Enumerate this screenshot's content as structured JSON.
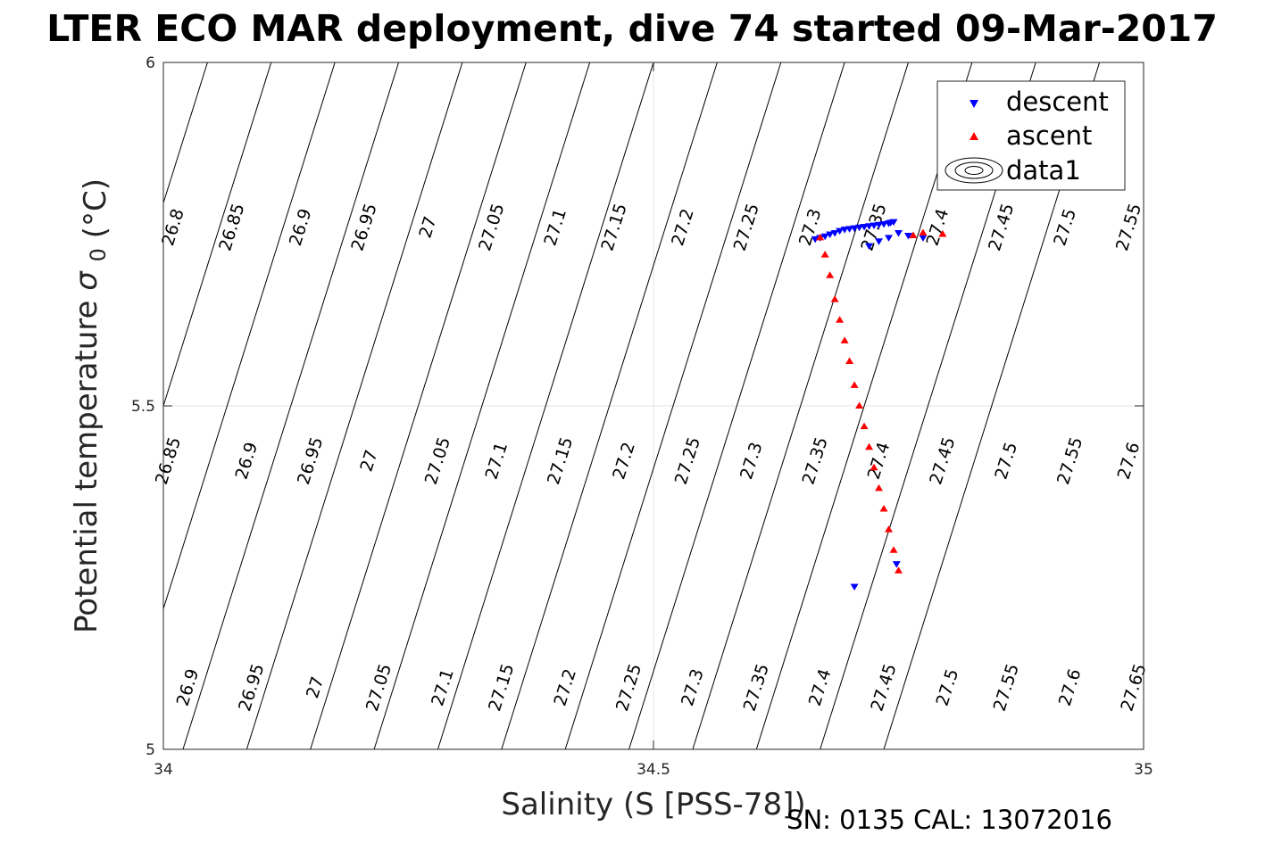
{
  "chart_data": {
    "type": "scatter",
    "title": "LTER ECO MAR deployment, dive 74 started 09-Mar-2017",
    "xlabel": "Salinity (S [PSS-78])",
    "ylabel": "Potential temperature",
    "ylabel_symbol": "σ",
    "ylabel_subscript": "0",
    "ylabel_unit": "(°C)",
    "xlim": [
      34,
      35
    ],
    "ylim": [
      5,
      6
    ],
    "xticks": [
      34,
      34.5,
      35
    ],
    "yticks": [
      5,
      5.5,
      6
    ],
    "xtick_labels": [
      "34",
      "34.5",
      "35"
    ],
    "ytick_labels": [
      "5",
      "5.5",
      "6"
    ],
    "grid": true,
    "legend_position": "top-right",
    "contours": {
      "band_top": {
        "y_label": 5.76,
        "label_positions": [
          {
            "label": "26.8",
            "x": 34.01
          },
          {
            "label": "26.85",
            "x": 34.07
          },
          {
            "label": "26.9",
            "x": 34.14
          },
          {
            "label": "26.95",
            "x": 34.205
          },
          {
            "label": "27",
            "x": 34.27
          },
          {
            "label": "27.05",
            "x": 34.335
          },
          {
            "label": "27.1",
            "x": 34.4
          },
          {
            "label": "27.15",
            "x": 34.46
          },
          {
            "label": "27.2",
            "x": 34.53
          },
          {
            "label": "27.25",
            "x": 34.595
          },
          {
            "label": "27.3",
            "x": 34.66
          },
          {
            "label": "27.35",
            "x": 34.725
          },
          {
            "label": "27.4",
            "x": 34.79
          },
          {
            "label": "27.45",
            "x": 34.855
          },
          {
            "label": "27.5",
            "x": 34.92
          },
          {
            "label": "27.55",
            "x": 34.985
          }
        ]
      },
      "band_mid": {
        "y_label": 5.42,
        "label_positions": [
          {
            "label": "26.85",
            "x": 34.005
          },
          {
            "label": "26.9",
            "x": 34.085
          },
          {
            "label": "26.95",
            "x": 34.15
          },
          {
            "label": "27",
            "x": 34.21
          },
          {
            "label": "27.05",
            "x": 34.28
          },
          {
            "label": "27.1",
            "x": 34.34
          },
          {
            "label": "27.15",
            "x": 34.405
          },
          {
            "label": "27.2",
            "x": 34.47
          },
          {
            "label": "27.25",
            "x": 34.535
          },
          {
            "label": "27.3",
            "x": 34.6
          },
          {
            "label": "27.35",
            "x": 34.665
          },
          {
            "label": "27.4",
            "x": 34.73
          },
          {
            "label": "27.45",
            "x": 34.795
          },
          {
            "label": "27.5",
            "x": 34.86
          },
          {
            "label": "27.55",
            "x": 34.925
          },
          {
            "label": "27.6",
            "x": 34.985
          }
        ]
      },
      "band_bottom": {
        "y_label": 5.09,
        "label_positions": [
          {
            "label": "26.9",
            "x": 34.025
          },
          {
            "label": "26.95",
            "x": 34.09
          },
          {
            "label": "27",
            "x": 34.155
          },
          {
            "label": "27.05",
            "x": 34.22
          },
          {
            "label": "27.1",
            "x": 34.285
          },
          {
            "label": "27.15",
            "x": 34.345
          },
          {
            "label": "27.2",
            "x": 34.41
          },
          {
            "label": "27.25",
            "x": 34.475
          },
          {
            "label": "27.3",
            "x": 34.54
          },
          {
            "label": "27.35",
            "x": 34.605
          },
          {
            "label": "27.4",
            "x": 34.67
          },
          {
            "label": "27.45",
            "x": 34.735
          },
          {
            "label": "27.5",
            "x": 34.8
          },
          {
            "label": "27.55",
            "x": 34.86
          },
          {
            "label": "27.6",
            "x": 34.925
          },
          {
            "label": "27.65",
            "x": 34.99
          }
        ]
      },
      "line_x_at_top": [
        33.98,
        34.045,
        34.11,
        34.175,
        34.24,
        34.305,
        34.37,
        34.435,
        34.5,
        34.565,
        34.63,
        34.695,
        34.76,
        34.825,
        34.89,
        34.955
      ],
      "slope_x_per_degC": 0.22
    },
    "series": [
      {
        "name": "descent",
        "color": "#0000ff",
        "marker": "triangle-down",
        "x": [
          34.665,
          34.67,
          34.675,
          34.68,
          34.685,
          34.69,
          34.695,
          34.7,
          34.705,
          34.71,
          34.715,
          34.72,
          34.725,
          34.73,
          34.735,
          34.74,
          34.742,
          34.745,
          34.72,
          34.73,
          34.74,
          34.75,
          34.76,
          34.775,
          34.705,
          34.748
        ],
        "y": [
          5.743,
          5.745,
          5.747,
          5.75,
          5.752,
          5.755,
          5.757,
          5.758,
          5.759,
          5.76,
          5.761,
          5.762,
          5.763,
          5.764,
          5.765,
          5.766,
          5.767,
          5.768,
          5.733,
          5.74,
          5.745,
          5.752,
          5.748,
          5.745,
          5.237,
          5.27
        ]
      },
      {
        "name": "ascent",
        "color": "#ff0000",
        "marker": "triangle-up",
        "x": [
          34.67,
          34.675,
          34.68,
          34.685,
          34.69,
          34.695,
          34.7,
          34.705,
          34.71,
          34.715,
          34.72,
          34.725,
          34.73,
          34.735,
          34.74,
          34.745,
          34.75,
          34.765,
          34.775,
          34.795
        ],
        "y": [
          5.745,
          5.72,
          5.69,
          5.655,
          5.625,
          5.595,
          5.565,
          5.53,
          5.5,
          5.47,
          5.44,
          5.41,
          5.38,
          5.35,
          5.32,
          5.29,
          5.26,
          5.748,
          5.752,
          5.75
        ]
      }
    ],
    "legend": [
      {
        "label": "descent",
        "symbol": "triangle-down",
        "color": "#0000ff"
      },
      {
        "label": "ascent",
        "symbol": "triangle-up",
        "color": "#ff0000"
      },
      {
        "label": "data1",
        "symbol": "contour",
        "color": "#000000"
      }
    ],
    "footnote": "SN: 0135  CAL: 13072016"
  }
}
